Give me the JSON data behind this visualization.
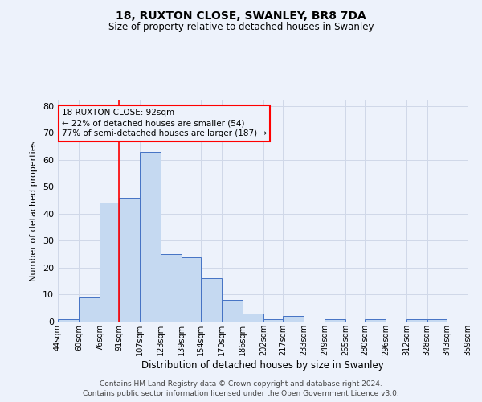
{
  "title1": "18, RUXTON CLOSE, SWANLEY, BR8 7DA",
  "title2": "Size of property relative to detached houses in Swanley",
  "xlabel": "Distribution of detached houses by size in Swanley",
  "ylabel": "Number of detached properties",
  "annotation_line1": "18 RUXTON CLOSE: 92sqm",
  "annotation_line2": "← 22% of detached houses are smaller (54)",
  "annotation_line3": "77% of semi-detached houses are larger (187) →",
  "bin_edges": [
    44,
    60,
    76,
    91,
    107,
    123,
    139,
    154,
    170,
    186,
    202,
    217,
    233,
    249,
    265,
    280,
    296,
    312,
    328,
    343,
    359
  ],
  "bin_labels": [
    "44sqm",
    "60sqm",
    "76sqm",
    "91sqm",
    "107sqm",
    "123sqm",
    "139sqm",
    "154sqm",
    "170sqm",
    "186sqm",
    "202sqm",
    "217sqm",
    "233sqm",
    "249sqm",
    "265sqm",
    "280sqm",
    "296sqm",
    "312sqm",
    "328sqm",
    "343sqm",
    "359sqm"
  ],
  "counts": [
    1,
    9,
    44,
    46,
    63,
    25,
    24,
    16,
    8,
    3,
    1,
    2,
    0,
    1,
    0,
    1,
    0,
    1,
    1,
    0
  ],
  "bar_color": "#c5d9f1",
  "bar_edge_color": "#4472c4",
  "red_line_x": 91,
  "ylim": [
    0,
    82
  ],
  "yticks": [
    0,
    10,
    20,
    30,
    40,
    50,
    60,
    70,
    80
  ],
  "grid_color": "#d0d8e8",
  "bg_color": "#edf2fb",
  "footnote1": "Contains HM Land Registry data © Crown copyright and database right 2024.",
  "footnote2": "Contains public sector information licensed under the Open Government Licence v3.0."
}
